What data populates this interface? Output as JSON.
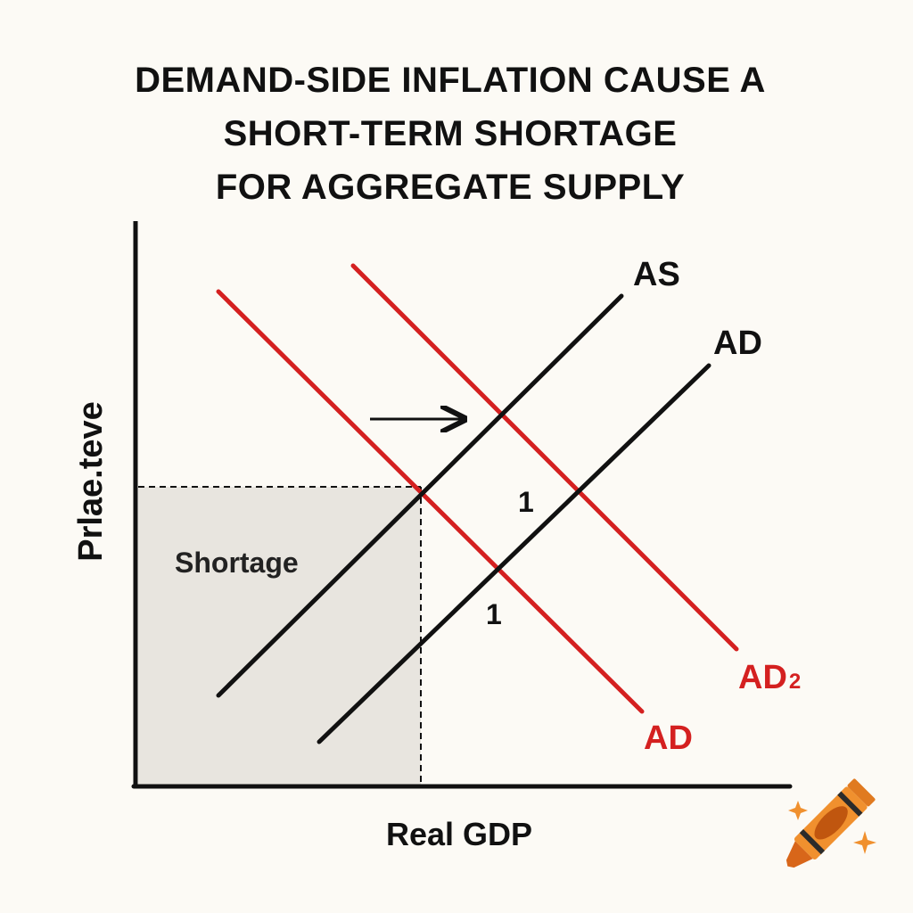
{
  "title": {
    "line1": "DEMAND-SIDE INFLATION CAUSE A",
    "line2": "SHORT-TERM SHORTAGE",
    "line3": "FOR AGGREGATE SUPPLY"
  },
  "axes": {
    "y_label": "Prlae.teve",
    "x_label": "Real GDP"
  },
  "curves": {
    "as_label": "AS",
    "ad_black_label": "AD",
    "ad_red_label": "AD",
    "ad2_label_main": "AD",
    "ad2_label_sub": "2"
  },
  "annotations": {
    "region_label": "Shortage",
    "marker_upper": "1",
    "marker_lower": "1"
  },
  "colors": {
    "background": "#fcfaf5",
    "black_curves": "#111111",
    "red_curves": "#d42020",
    "shaded_region": "#e8e5df",
    "crayon": "#f0902e"
  },
  "icons": {
    "logo": "crayon-icon"
  }
}
